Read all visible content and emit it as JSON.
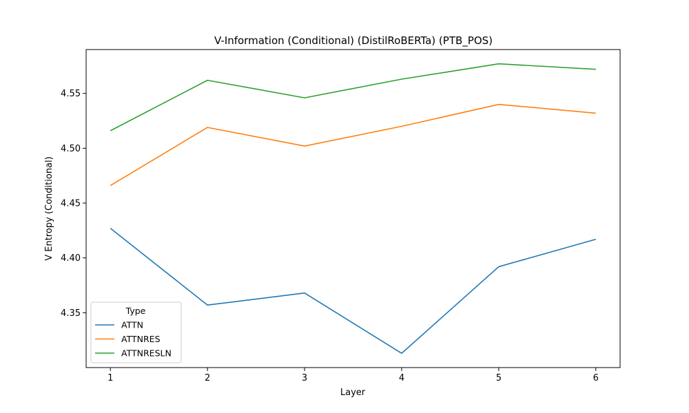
{
  "chart_data": {
    "type": "line",
    "title": "V-Information (Conditional) (DistilRoBERTa) (PTB_POS)",
    "xlabel": "Layer",
    "ylabel": "V Entropy (Conditional)",
    "x": [
      1,
      2,
      3,
      4,
      5,
      6
    ],
    "xticks": [
      "1",
      "2",
      "3",
      "4",
      "5",
      "6"
    ],
    "yticks": [
      "4.35",
      "4.40",
      "4.45",
      "4.50",
      "4.55"
    ],
    "ylim": [
      4.3,
      4.59
    ],
    "grid": false,
    "legend_title": "Type",
    "legend_position": "lower-left",
    "series": [
      {
        "name": "ATTN",
        "color": "#1f77b4",
        "values": [
          4.427,
          4.357,
          4.368,
          4.313,
          4.392,
          4.417
        ]
      },
      {
        "name": "ATTNRES",
        "color": "#ff7f0e",
        "values": [
          4.466,
          4.519,
          4.502,
          4.52,
          4.54,
          4.532
        ]
      },
      {
        "name": "ATTNRESLN",
        "color": "#2ca02c",
        "values": [
          4.516,
          4.562,
          4.546,
          4.563,
          4.577,
          4.572
        ]
      }
    ]
  }
}
